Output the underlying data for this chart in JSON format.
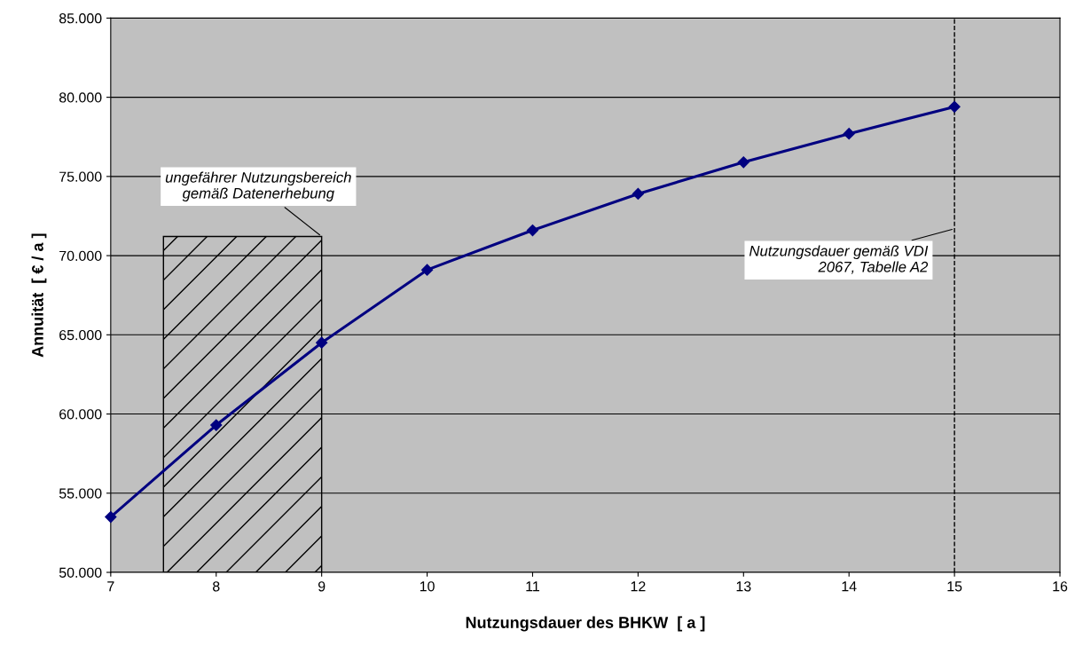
{
  "chart_data": {
    "type": "line",
    "xlabel": "Nutzungsdauer des BHKW  [ a ]",
    "ylabel": "Annuität  [ € / a ]",
    "x": [
      7,
      8,
      9,
      10,
      11,
      12,
      13,
      14,
      15
    ],
    "series": [
      {
        "color": "#000080",
        "values": [
          53500,
          59300,
          64500,
          69100,
          71600,
          73900,
          75900,
          77700,
          79400
        ]
      }
    ],
    "marker": "diamond",
    "line_style": "solid",
    "grid": "y",
    "legend": false,
    "xlim": [
      7,
      16
    ],
    "xticks": [
      7,
      8,
      9,
      10,
      11,
      12,
      13,
      14,
      15,
      16
    ],
    "ylim": [
      50000,
      85000
    ],
    "yticks": [
      {
        "value": 50000,
        "label": "50.000"
      },
      {
        "value": 55000,
        "label": "55.000"
      },
      {
        "value": 60000,
        "label": "60.000"
      },
      {
        "value": 65000,
        "label": "65.000"
      },
      {
        "value": 70000,
        "label": "70.000"
      },
      {
        "value": 75000,
        "label": "75.000"
      },
      {
        "value": 80000,
        "label": "80.000"
      },
      {
        "value": 85000,
        "label": "85.000"
      }
    ],
    "bands": [
      {
        "axis": "x",
        "from": 7.5,
        "to": 9,
        "label": "ungefährer Nutzungsbereich\ngemäß Datenerhebung",
        "color": "#000000"
      }
    ],
    "ref_lines": [
      {
        "axis": "x",
        "value": 15,
        "label": "Nutzungsdauer gemäß VDI\n2067, Tabelle A2",
        "color": "#000000",
        "line_style": "dashed"
      }
    ]
  }
}
